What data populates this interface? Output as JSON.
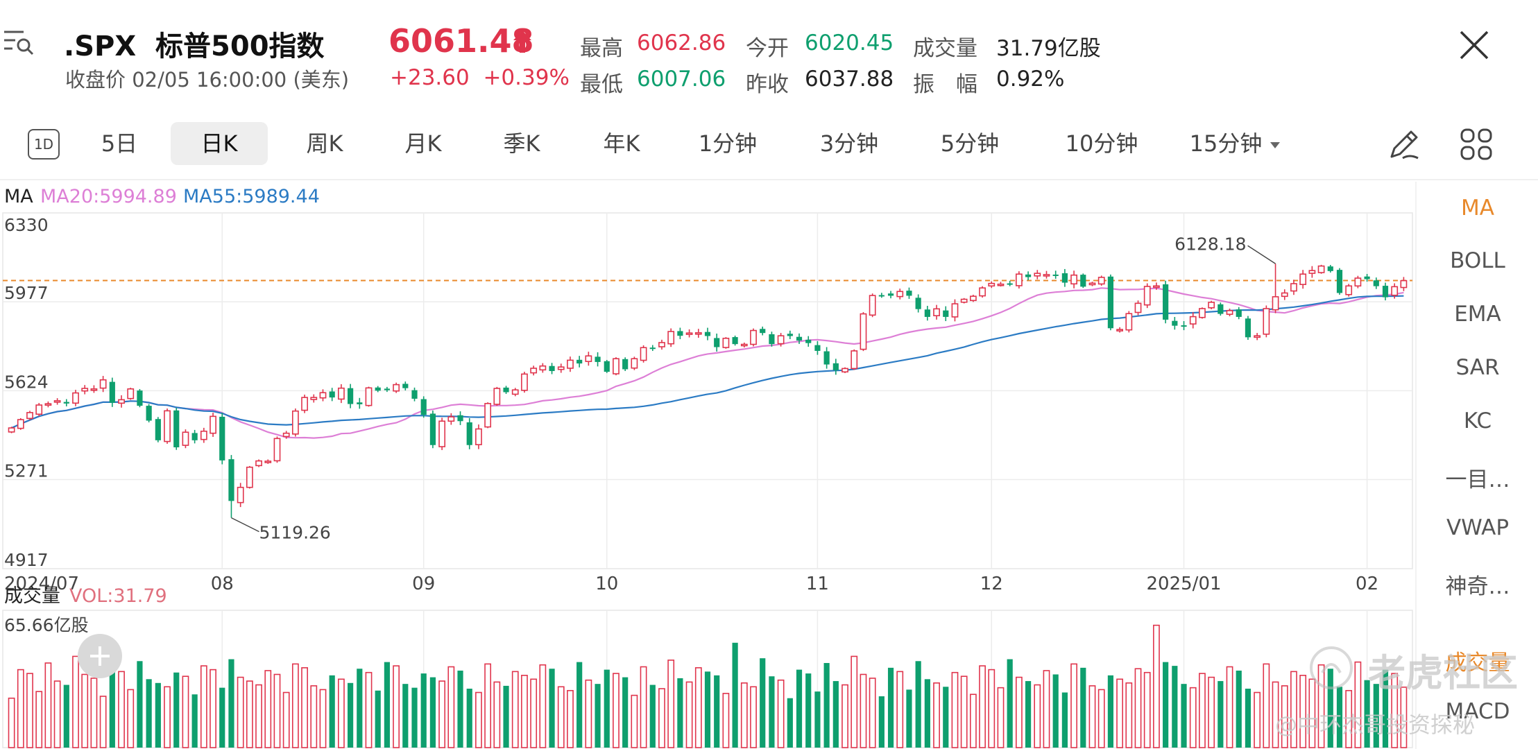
{
  "header": {
    "symbol": ".SPX",
    "name": "标普500指数",
    "subtitle": "收盘价 02/05 16:00:00 (美东)",
    "price": "6061.48",
    "change": "+23.60",
    "change_pct": "+0.39%",
    "stats": [
      {
        "label": "最高",
        "value": "6062.86",
        "color": "red"
      },
      {
        "label": "今开",
        "value": "6020.45",
        "color": "green"
      },
      {
        "label": "成交量",
        "value": "31.79亿股",
        "color": "dark"
      },
      {
        "label": "最低",
        "value": "6007.06",
        "color": "green"
      },
      {
        "label": "昨收",
        "value": "6037.88",
        "color": "dark"
      },
      {
        "label": "振　幅",
        "value": "0.92%",
        "color": "dark"
      }
    ]
  },
  "tabs": {
    "badge": "1D",
    "items": [
      "5日",
      "日K",
      "周K",
      "月K",
      "季K",
      "年K",
      "1分钟",
      "3分钟",
      "5分钟",
      "10分钟",
      "15分钟"
    ],
    "active": "日K"
  },
  "indicators": [
    "MA",
    "BOLL",
    "EMA",
    "SAR",
    "KC",
    "一目…",
    "VWAP",
    "神奇…"
  ],
  "sub_indicators": [
    "成交量",
    "MACD"
  ],
  "ma_legend": {
    "label": "MA",
    "ma20": "MA20:5994.89",
    "ma55": "MA55:5989.44"
  },
  "vol_legend": {
    "label": "成交量",
    "value": "VOL:31.79",
    "max": "65.66亿股"
  },
  "watermark": {
    "big": "老虎社区",
    "small": "@中环杰哥投资探秘"
  },
  "colors": {
    "up": "#e0344c",
    "down": "#0e9f6e",
    "ma20": "#dd7fd6",
    "ma55": "#2b7bc4",
    "ref": "#e8892b"
  },
  "chart_data": {
    "type": "candlestick",
    "title": ".SPX 标普500指数",
    "ylim": [
      4917,
      6330
    ],
    "y_ticks": [
      "6330",
      "5977",
      "5624",
      "5271",
      "4917"
    ],
    "x_tick_labels": [
      {
        "label": "2024/07",
        "i": 0
      },
      {
        "label": "08",
        "i": 23
      },
      {
        "label": "09",
        "i": 45
      },
      {
        "label": "10",
        "i": 65
      },
      {
        "label": "11",
        "i": 88
      },
      {
        "label": "12",
        "i": 107
      },
      {
        "label": "2025/01",
        "i": 128
      },
      {
        "label": "02",
        "i": 148
      }
    ],
    "reference_price": 6061.48,
    "annotations": [
      {
        "text": "6128.18",
        "i": 138,
        "value": 6128.18
      },
      {
        "text": "5119.26",
        "i": 24,
        "value": 5119.26
      }
    ],
    "closes": [
      5476,
      5509,
      5537,
      5567,
      5572,
      5584,
      5573,
      5615,
      5633,
      5631,
      5667,
      5576,
      5588,
      5631,
      5564,
      5505,
      5427,
      5544,
      5399,
      5459,
      5427,
      5463,
      5522,
      5347,
      5186,
      5240,
      5320,
      5345,
      5344,
      5434,
      5455,
      5543,
      5597,
      5597,
      5616,
      5597,
      5634,
      5571,
      5570,
      5635,
      5624,
      5626,
      5648,
      5634,
      5592,
      5528,
      5408,
      5503,
      5520,
      5503,
      5408,
      5472,
      5573,
      5633,
      5618,
      5627,
      5690,
      5713,
      5722,
      5702,
      5718,
      5745,
      5732,
      5762,
      5738,
      5699,
      5751,
      5709,
      5751,
      5795,
      5792,
      5815,
      5859,
      5842,
      5853,
      5854,
      5841,
      5797,
      5832,
      5809,
      5808,
      5863,
      5853,
      5809,
      5842,
      5841,
      5823,
      5813,
      5782,
      5728,
      5705,
      5712,
      5782,
      5929,
      6002,
      6002,
      6001,
      6018,
      6001,
      5948,
      5917,
      5949,
      5917,
      5969,
      5987,
      5999,
      6032,
      6050,
      6047,
      6049,
      6087,
      6075,
      6090,
      6085,
      6084,
      6053,
      6083,
      6037,
      6051,
      6074,
      5872,
      5867,
      5930,
      5971,
      6038,
      6040,
      5906,
      5882,
      5881,
      5918,
      5950,
      5975,
      5929,
      5942,
      5917,
      5836,
      5842,
      5950,
      5997,
      6012,
      6049,
      6087,
      6101,
      6119,
      6099,
      6012,
      6040,
      6071,
      6067,
      6039,
      5995,
      6037,
      6061
    ]
  },
  "volume_data": {
    "unit": "亿股",
    "max": 65.66,
    "last": 31.79
  }
}
